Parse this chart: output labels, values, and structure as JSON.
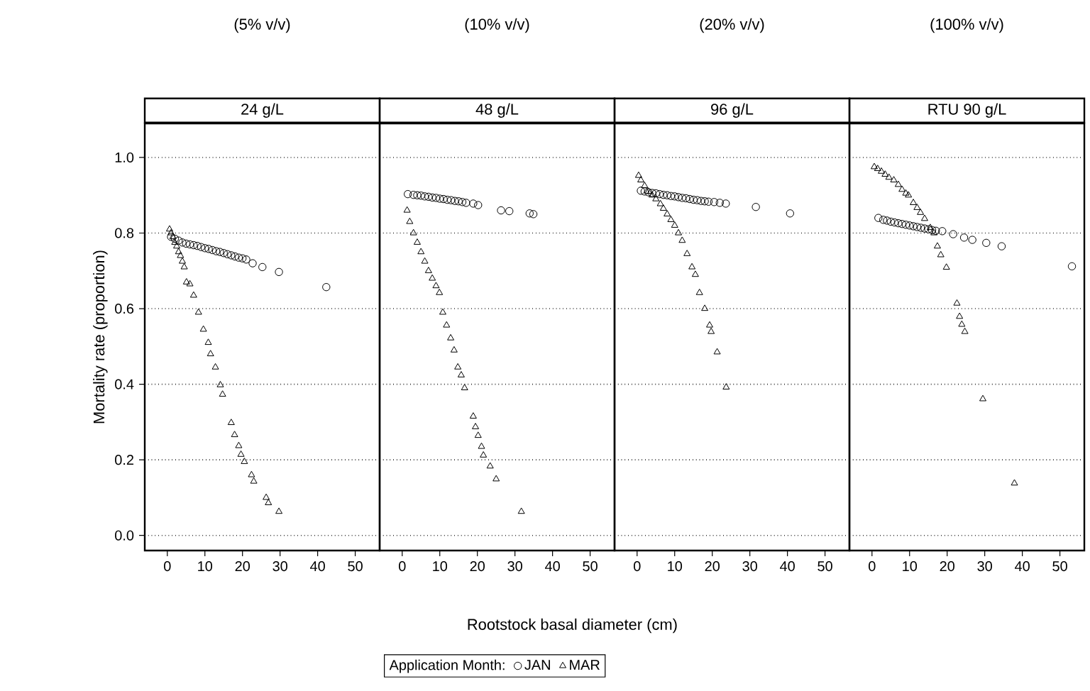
{
  "chart_data": [
    {
      "type": "scatter",
      "title": "24 g/L",
      "subtitle": "(5% v/v)",
      "ylabel": "Mortality rate (proportion)",
      "legend_title": "Application Month:",
      "legend": "bottom",
      "grid": "y",
      "xlim": [
        -6,
        56.5
      ],
      "ylim": [
        -0.04,
        1.09
      ],
      "xticks": [
        0,
        10,
        20,
        30,
        40,
        50
      ],
      "yticks": [
        {
          "value": 0,
          "label": "0.0"
        },
        {
          "value": 0.2,
          "label": "0.2"
        },
        {
          "value": 0.4,
          "label": "0.4"
        },
        {
          "value": 0.6,
          "label": "0.6"
        },
        {
          "value": 0.8,
          "label": "0.8"
        },
        {
          "value": 1,
          "label": "1.0"
        }
      ],
      "series": [
        {
          "name": "JAN",
          "color": "#000000",
          "marker": "circle",
          "x": [
            1,
            2,
            3,
            4,
            5,
            6,
            7,
            8,
            9,
            10,
            11,
            12,
            13,
            14,
            15,
            16,
            17,
            18,
            19,
            20,
            21,
            22.7,
            25.3,
            29.7,
            42.3
          ],
          "values": [
            0.79,
            0.785,
            0.78,
            0.775,
            0.772,
            0.77,
            0.768,
            0.766,
            0.763,
            0.76,
            0.758,
            0.755,
            0.752,
            0.75,
            0.747,
            0.744,
            0.741,
            0.738,
            0.735,
            0.733,
            0.73,
            0.72,
            0.71,
            0.697,
            0.657
          ]
        },
        {
          "name": "MAR",
          "color": "#000000",
          "marker": "triangle",
          "x": [
            0.6,
            1,
            1.5,
            2,
            2.5,
            3,
            3.5,
            4,
            4.5,
            5.1,
            6,
            7,
            8.3,
            9.6,
            10.9,
            11.5,
            12.8,
            14.1,
            14.7,
            17,
            17.9,
            19,
            19.6,
            20.5,
            22.4,
            23,
            26.3,
            26.9,
            29.7
          ],
          "values": [
            0.81,
            0.8,
            0.79,
            0.775,
            0.765,
            0.75,
            0.74,
            0.725,
            0.71,
            0.67,
            0.665,
            0.635,
            0.59,
            0.545,
            0.51,
            0.48,
            0.445,
            0.398,
            0.373,
            0.298,
            0.266,
            0.237,
            0.214,
            0.195,
            0.16,
            0.143,
            0.1,
            0.086,
            0.063
          ]
        }
      ]
    },
    {
      "type": "scatter",
      "title": "48 g/L",
      "subtitle": "(10% v/v)",
      "xlabel": "Rootstock basal diameter (cm)",
      "grid": "y",
      "tick_labels": "x",
      "xlim": [
        -6,
        56.5
      ],
      "ylim": [
        -0.04,
        1.09
      ],
      "xticks": [
        0,
        10,
        20,
        30,
        40,
        50
      ],
      "yticks": [
        {
          "value": 0,
          "label": null
        },
        {
          "value": 0.2,
          "label": null
        },
        {
          "value": 0.4,
          "label": null
        },
        {
          "value": 0.6,
          "label": null
        },
        {
          "value": 0.8,
          "label": null
        },
        {
          "value": 1,
          "label": null
        }
      ],
      "series": [
        {
          "color": "#000000",
          "marker": "circle",
          "x": [
            1.5,
            3,
            4,
            5,
            6,
            7,
            8,
            9,
            10,
            11,
            12,
            13,
            14,
            15,
            16,
            17,
            18.9,
            20.2,
            26.3,
            28.5,
            33.9,
            34.9
          ],
          "values": [
            0.903,
            0.901,
            0.9,
            0.899,
            0.897,
            0.896,
            0.894,
            0.893,
            0.891,
            0.89,
            0.888,
            0.887,
            0.885,
            0.884,
            0.882,
            0.88,
            0.878,
            0.874,
            0.86,
            0.858,
            0.852,
            0.85
          ]
        },
        {
          "color": "#000000",
          "marker": "triangle",
          "x": [
            1.3,
            2,
            3,
            4,
            5,
            6,
            7,
            8,
            9,
            9.9,
            10.8,
            11.8,
            12.9,
            13.8,
            14.8,
            15.7,
            16.6,
            18.9,
            19.5,
            20.2,
            21.1,
            21.6,
            23.4,
            25,
            31.7
          ],
          "values": [
            0.86,
            0.83,
            0.8,
            0.775,
            0.75,
            0.725,
            0.7,
            0.68,
            0.66,
            0.642,
            0.59,
            0.556,
            0.522,
            0.49,
            0.445,
            0.424,
            0.39,
            0.315,
            0.287,
            0.264,
            0.235,
            0.212,
            0.183,
            0.149,
            0.063
          ]
        }
      ]
    },
    {
      "type": "scatter",
      "title": "96 g/L",
      "subtitle": "(20% v/v)",
      "grid": "y",
      "tick_labels": "x",
      "xlim": [
        -6,
        56.5
      ],
      "ylim": [
        -0.04,
        1.09
      ],
      "xticks": [
        0,
        10,
        20,
        30,
        40,
        50
      ],
      "yticks": [
        {
          "value": 0,
          "label": null
        },
        {
          "value": 0.2,
          "label": null
        },
        {
          "value": 0.4,
          "label": null
        },
        {
          "value": 0.6,
          "label": null
        },
        {
          "value": 0.8,
          "label": null
        },
        {
          "value": 1,
          "label": null
        }
      ],
      "series": [
        {
          "color": "#000000",
          "marker": "circle",
          "x": [
            1,
            2,
            3,
            4,
            5,
            6,
            7,
            8,
            9,
            10,
            11,
            12,
            13,
            14,
            15,
            16,
            17,
            18,
            19,
            20.5,
            22,
            23.6,
            31.6,
            40.7
          ],
          "values": [
            0.912,
            0.91,
            0.908,
            0.906,
            0.905,
            0.903,
            0.901,
            0.9,
            0.898,
            0.897,
            0.895,
            0.893,
            0.892,
            0.89,
            0.888,
            0.887,
            0.885,
            0.884,
            0.883,
            0.882,
            0.88,
            0.878,
            0.869,
            0.852
          ]
        },
        {
          "color": "#000000",
          "marker": "triangle",
          "x": [
            0.4,
            1,
            2,
            3,
            4,
            5,
            6.2,
            7,
            8,
            9,
            10,
            11,
            12,
            13.3,
            14.6,
            15.5,
            16.6,
            18,
            19.3,
            19.7,
            21.3,
            23.7
          ],
          "values": [
            0.952,
            0.94,
            0.925,
            0.91,
            0.9,
            0.89,
            0.877,
            0.865,
            0.85,
            0.835,
            0.82,
            0.8,
            0.78,
            0.745,
            0.71,
            0.69,
            0.642,
            0.6,
            0.556,
            0.539,
            0.485,
            0.392
          ]
        }
      ]
    },
    {
      "type": "scatter",
      "title": "RTU 90 g/L",
      "subtitle": "(100% v/v)",
      "grid": "y",
      "tick_labels": "x",
      "xlim": [
        -6,
        56.5
      ],
      "ylim": [
        -0.04,
        1.09
      ],
      "xticks": [
        0,
        10,
        20,
        30,
        40,
        50
      ],
      "yticks": [
        {
          "value": 0,
          "label": null
        },
        {
          "value": 0.2,
          "label": null
        },
        {
          "value": 0.4,
          "label": null
        },
        {
          "value": 0.6,
          "label": null
        },
        {
          "value": 0.8,
          "label": null
        },
        {
          "value": 1,
          "label": null
        }
      ],
      "series": [
        {
          "color": "#000000",
          "marker": "circle",
          "x": [
            1.7,
            3,
            4,
            5,
            6,
            7,
            8,
            9,
            10,
            11,
            12,
            13,
            14,
            15,
            16,
            17,
            18.7,
            21.6,
            24.5,
            26.7,
            30.4,
            34.5,
            53.2
          ],
          "values": [
            0.84,
            0.835,
            0.833,
            0.83,
            0.828,
            0.826,
            0.824,
            0.822,
            0.82,
            0.818,
            0.816,
            0.814,
            0.812,
            0.81,
            0.808,
            0.806,
            0.805,
            0.797,
            0.788,
            0.782,
            0.774,
            0.765,
            0.712
          ]
        },
        {
          "color": "#000000",
          "marker": "triangle",
          "x": [
            0.6,
            1.5,
            2.5,
            3.5,
            4.5,
            5.8,
            7,
            8,
            9,
            9.7,
            11,
            12,
            12.9,
            14,
            15.5,
            16.5,
            17.4,
            18.3,
            19.8,
            22.6,
            23.3,
            23.9,
            24.7,
            29.5,
            37.9
          ],
          "values": [
            0.975,
            0.97,
            0.963,
            0.955,
            0.947,
            0.94,
            0.928,
            0.915,
            0.905,
            0.9,
            0.88,
            0.867,
            0.854,
            0.838,
            0.814,
            0.8,
            0.765,
            0.742,
            0.709,
            0.614,
            0.579,
            0.558,
            0.539,
            0.361,
            0.138
          ]
        }
      ]
    }
  ]
}
